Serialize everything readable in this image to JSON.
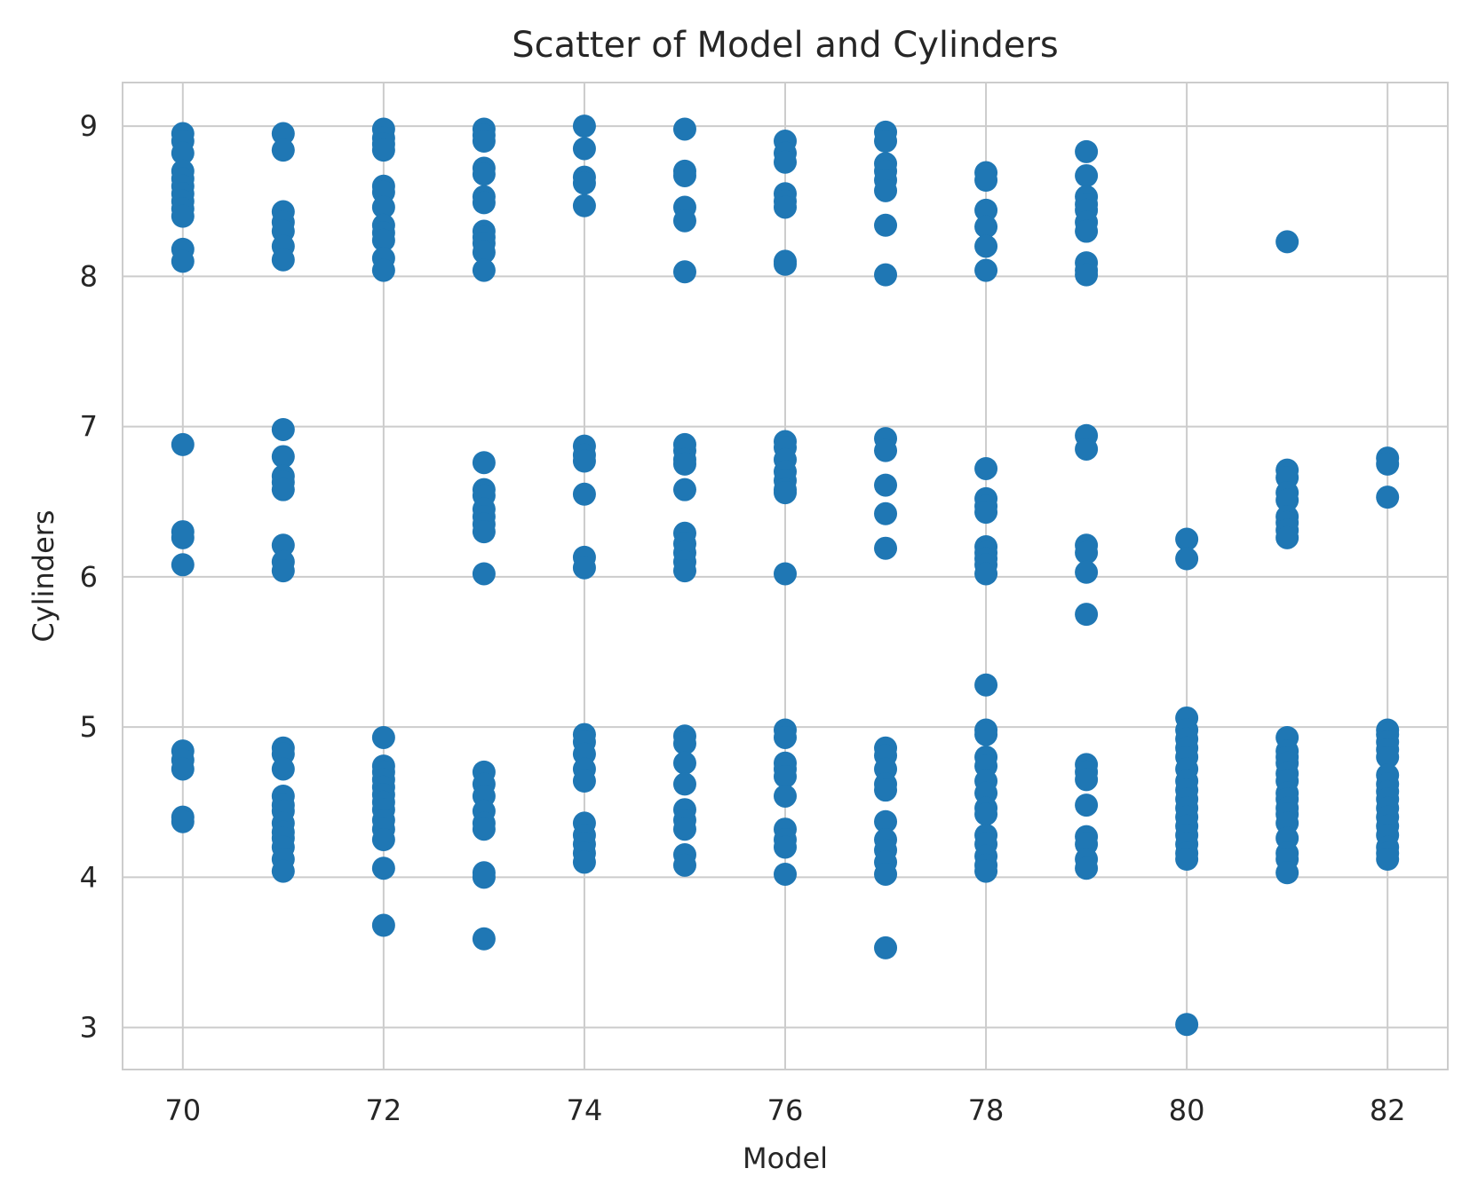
{
  "chart_data": {
    "type": "scatter",
    "title": "Scatter of Model and Cylinders",
    "xlabel": "Model",
    "ylabel": "Cylinders",
    "xlim": [
      69.4,
      82.6
    ],
    "ylim": [
      2.72,
      9.29
    ],
    "xticks": [
      70,
      72,
      74,
      76,
      78,
      80,
      82
    ],
    "yticks": [
      3,
      4,
      5,
      6,
      7,
      8,
      9
    ],
    "grid": true,
    "legend": "none",
    "marker_color": "#1f77b4",
    "grid_color": "#cccccc",
    "spine_color": "#cccccc",
    "series": [
      {
        "points": [
          [
            70,
            8.95
          ],
          [
            70,
            8.9
          ],
          [
            70,
            8.82
          ],
          [
            70,
            8.7
          ],
          [
            70,
            8.65
          ],
          [
            70,
            8.6
          ],
          [
            70,
            8.55
          ],
          [
            70,
            8.5
          ],
          [
            70,
            8.45
          ],
          [
            70,
            8.4
          ],
          [
            70,
            8.18
          ],
          [
            70,
            8.1
          ],
          [
            70,
            6.88
          ],
          [
            70,
            6.3
          ],
          [
            70,
            6.26
          ],
          [
            70,
            6.08
          ],
          [
            70,
            4.84
          ],
          [
            70,
            4.78
          ],
          [
            70,
            4.72
          ],
          [
            70,
            4.4
          ],
          [
            70,
            4.37
          ],
          [
            71,
            8.95
          ],
          [
            71,
            8.84
          ],
          [
            71,
            8.43
          ],
          [
            71,
            8.36
          ],
          [
            71,
            8.3
          ],
          [
            71,
            8.2
          ],
          [
            71,
            8.11
          ],
          [
            71,
            6.98
          ],
          [
            71,
            6.8
          ],
          [
            71,
            6.67
          ],
          [
            71,
            6.63
          ],
          [
            71,
            6.58
          ],
          [
            71,
            6.21
          ],
          [
            71,
            6.1
          ],
          [
            71,
            6.04
          ],
          [
            71,
            4.86
          ],
          [
            71,
            4.82
          ],
          [
            71,
            4.72
          ],
          [
            71,
            4.54
          ],
          [
            71,
            4.48
          ],
          [
            71,
            4.44
          ],
          [
            71,
            4.36
          ],
          [
            71,
            4.3
          ],
          [
            71,
            4.26
          ],
          [
            71,
            4.2
          ],
          [
            71,
            4.12
          ],
          [
            71,
            4.04
          ],
          [
            72,
            8.98
          ],
          [
            72,
            8.92
          ],
          [
            72,
            8.88
          ],
          [
            72,
            8.84
          ],
          [
            72,
            8.6
          ],
          [
            72,
            8.56
          ],
          [
            72,
            8.46
          ],
          [
            72,
            8.34
          ],
          [
            72,
            8.29
          ],
          [
            72,
            8.24
          ],
          [
            72,
            8.12
          ],
          [
            72,
            8.04
          ],
          [
            72,
            4.93
          ],
          [
            72,
            4.74
          ],
          [
            72,
            4.7
          ],
          [
            72,
            4.65
          ],
          [
            72,
            4.6
          ],
          [
            72,
            4.55
          ],
          [
            72,
            4.5
          ],
          [
            72,
            4.45
          ],
          [
            72,
            4.38
          ],
          [
            72,
            4.32
          ],
          [
            72,
            4.25
          ],
          [
            72,
            4.06
          ],
          [
            72,
            3.68
          ],
          [
            73,
            8.98
          ],
          [
            73,
            8.94
          ],
          [
            73,
            8.9
          ],
          [
            73,
            8.72
          ],
          [
            73,
            8.68
          ],
          [
            73,
            8.53
          ],
          [
            73,
            8.49
          ],
          [
            73,
            8.3
          ],
          [
            73,
            8.26
          ],
          [
            73,
            8.22
          ],
          [
            73,
            8.16
          ],
          [
            73,
            8.04
          ],
          [
            73,
            6.76
          ],
          [
            73,
            6.58
          ],
          [
            73,
            6.54
          ],
          [
            73,
            6.45
          ],
          [
            73,
            6.4
          ],
          [
            73,
            6.35
          ],
          [
            73,
            6.3
          ],
          [
            73,
            6.02
          ],
          [
            73,
            4.7
          ],
          [
            73,
            4.62
          ],
          [
            73,
            4.54
          ],
          [
            73,
            4.44
          ],
          [
            73,
            4.36
          ],
          [
            73,
            4.32
          ],
          [
            73,
            4.03
          ],
          [
            73,
            4.0
          ],
          [
            73,
            3.59
          ],
          [
            74,
            9.0
          ],
          [
            74,
            8.85
          ],
          [
            74,
            8.66
          ],
          [
            74,
            8.62
          ],
          [
            74,
            8.47
          ],
          [
            74,
            6.87
          ],
          [
            74,
            6.81
          ],
          [
            74,
            6.77
          ],
          [
            74,
            6.55
          ],
          [
            74,
            6.13
          ],
          [
            74,
            6.06
          ],
          [
            74,
            4.95
          ],
          [
            74,
            4.9
          ],
          [
            74,
            4.82
          ],
          [
            74,
            4.72
          ],
          [
            74,
            4.64
          ],
          [
            74,
            4.36
          ],
          [
            74,
            4.28
          ],
          [
            74,
            4.22
          ],
          [
            74,
            4.16
          ],
          [
            74,
            4.1
          ],
          [
            75,
            8.98
          ],
          [
            75,
            8.7
          ],
          [
            75,
            8.67
          ],
          [
            75,
            8.46
          ],
          [
            75,
            8.37
          ],
          [
            75,
            8.03
          ],
          [
            75,
            6.88
          ],
          [
            75,
            6.84
          ],
          [
            75,
            6.78
          ],
          [
            75,
            6.75
          ],
          [
            75,
            6.58
          ],
          [
            75,
            6.29
          ],
          [
            75,
            6.22
          ],
          [
            75,
            6.16
          ],
          [
            75,
            6.1
          ],
          [
            75,
            6.04
          ],
          [
            75,
            4.94
          ],
          [
            75,
            4.89
          ],
          [
            75,
            4.76
          ],
          [
            75,
            4.62
          ],
          [
            75,
            4.45
          ],
          [
            75,
            4.38
          ],
          [
            75,
            4.32
          ],
          [
            75,
            4.15
          ],
          [
            75,
            4.08
          ],
          [
            76,
            8.9
          ],
          [
            76,
            8.82
          ],
          [
            76,
            8.76
          ],
          [
            76,
            8.55
          ],
          [
            76,
            8.5
          ],
          [
            76,
            8.46
          ],
          [
            76,
            8.1
          ],
          [
            76,
            8.08
          ],
          [
            76,
            6.9
          ],
          [
            76,
            6.86
          ],
          [
            76,
            6.78
          ],
          [
            76,
            6.7
          ],
          [
            76,
            6.64
          ],
          [
            76,
            6.58
          ],
          [
            76,
            6.56
          ],
          [
            76,
            6.02
          ],
          [
            76,
            4.98
          ],
          [
            76,
            4.93
          ],
          [
            76,
            4.76
          ],
          [
            76,
            4.72
          ],
          [
            76,
            4.67
          ],
          [
            76,
            4.54
          ],
          [
            76,
            4.32
          ],
          [
            76,
            4.25
          ],
          [
            76,
            4.2
          ],
          [
            76,
            4.02
          ],
          [
            77,
            8.96
          ],
          [
            77,
            8.9
          ],
          [
            77,
            8.75
          ],
          [
            77,
            8.7
          ],
          [
            77,
            8.64
          ],
          [
            77,
            8.57
          ],
          [
            77,
            8.34
          ],
          [
            77,
            8.01
          ],
          [
            77,
            6.92
          ],
          [
            77,
            6.84
          ],
          [
            77,
            6.61
          ],
          [
            77,
            6.42
          ],
          [
            77,
            6.19
          ],
          [
            77,
            4.86
          ],
          [
            77,
            4.81
          ],
          [
            77,
            4.72
          ],
          [
            77,
            4.62
          ],
          [
            77,
            4.58
          ],
          [
            77,
            4.37
          ],
          [
            77,
            4.25
          ],
          [
            77,
            4.18
          ],
          [
            77,
            4.1
          ],
          [
            77,
            4.02
          ],
          [
            77,
            3.53
          ],
          [
            78,
            8.69
          ],
          [
            78,
            8.64
          ],
          [
            78,
            8.44
          ],
          [
            78,
            8.33
          ],
          [
            78,
            8.2
          ],
          [
            78,
            8.04
          ],
          [
            78,
            6.72
          ],
          [
            78,
            6.52
          ],
          [
            78,
            6.47
          ],
          [
            78,
            6.43
          ],
          [
            78,
            6.2
          ],
          [
            78,
            6.16
          ],
          [
            78,
            6.12
          ],
          [
            78,
            6.08
          ],
          [
            78,
            6.02
          ],
          [
            78,
            5.28
          ],
          [
            78,
            4.98
          ],
          [
            78,
            4.95
          ],
          [
            78,
            4.8
          ],
          [
            78,
            4.74
          ],
          [
            78,
            4.64
          ],
          [
            78,
            4.56
          ],
          [
            78,
            4.46
          ],
          [
            78,
            4.42
          ],
          [
            78,
            4.28
          ],
          [
            78,
            4.22
          ],
          [
            78,
            4.14
          ],
          [
            78,
            4.08
          ],
          [
            78,
            4.04
          ],
          [
            79,
            8.83
          ],
          [
            79,
            8.67
          ],
          [
            79,
            8.53
          ],
          [
            79,
            8.48
          ],
          [
            79,
            8.44
          ],
          [
            79,
            8.36
          ],
          [
            79,
            8.3
          ],
          [
            79,
            8.09
          ],
          [
            79,
            8.04
          ],
          [
            79,
            8.01
          ],
          [
            79,
            6.94
          ],
          [
            79,
            6.85
          ],
          [
            79,
            6.21
          ],
          [
            79,
            6.16
          ],
          [
            79,
            6.03
          ],
          [
            79,
            5.75
          ],
          [
            79,
            4.75
          ],
          [
            79,
            4.7
          ],
          [
            79,
            4.65
          ],
          [
            79,
            4.48
          ],
          [
            79,
            4.27
          ],
          [
            79,
            4.22
          ],
          [
            79,
            4.12
          ],
          [
            79,
            4.06
          ],
          [
            80,
            6.25
          ],
          [
            80,
            6.12
          ],
          [
            80,
            5.06
          ],
          [
            80,
            4.98
          ],
          [
            80,
            4.92
          ],
          [
            80,
            4.86
          ],
          [
            80,
            4.8
          ],
          [
            80,
            4.72
          ],
          [
            80,
            4.64
          ],
          [
            80,
            4.58
          ],
          [
            80,
            4.52
          ],
          [
            80,
            4.46
          ],
          [
            80,
            4.4
          ],
          [
            80,
            4.34
          ],
          [
            80,
            4.28
          ],
          [
            80,
            4.22
          ],
          [
            80,
            4.16
          ],
          [
            80,
            4.12
          ],
          [
            80,
            3.02
          ],
          [
            81,
            8.23
          ],
          [
            81,
            6.71
          ],
          [
            81,
            6.66
          ],
          [
            81,
            6.56
          ],
          [
            81,
            6.51
          ],
          [
            81,
            6.4
          ],
          [
            81,
            6.36
          ],
          [
            81,
            6.31
          ],
          [
            81,
            6.26
          ],
          [
            81,
            4.93
          ],
          [
            81,
            4.84
          ],
          [
            81,
            4.8
          ],
          [
            81,
            4.76
          ],
          [
            81,
            4.69
          ],
          [
            81,
            4.64
          ],
          [
            81,
            4.56
          ],
          [
            81,
            4.52
          ],
          [
            81,
            4.46
          ],
          [
            81,
            4.42
          ],
          [
            81,
            4.36
          ],
          [
            81,
            4.26
          ],
          [
            81,
            4.16
          ],
          [
            81,
            4.12
          ],
          [
            81,
            4.03
          ],
          [
            82,
            6.79
          ],
          [
            82,
            6.75
          ],
          [
            82,
            6.53
          ],
          [
            82,
            4.98
          ],
          [
            82,
            4.95
          ],
          [
            82,
            4.9
          ],
          [
            82,
            4.85
          ],
          [
            82,
            4.8
          ],
          [
            82,
            4.68
          ],
          [
            82,
            4.62
          ],
          [
            82,
            4.57
          ],
          [
            82,
            4.52
          ],
          [
            82,
            4.46
          ],
          [
            82,
            4.4
          ],
          [
            82,
            4.34
          ],
          [
            82,
            4.28
          ],
          [
            82,
            4.2
          ],
          [
            82,
            4.16
          ],
          [
            82,
            4.12
          ]
        ]
      }
    ]
  }
}
